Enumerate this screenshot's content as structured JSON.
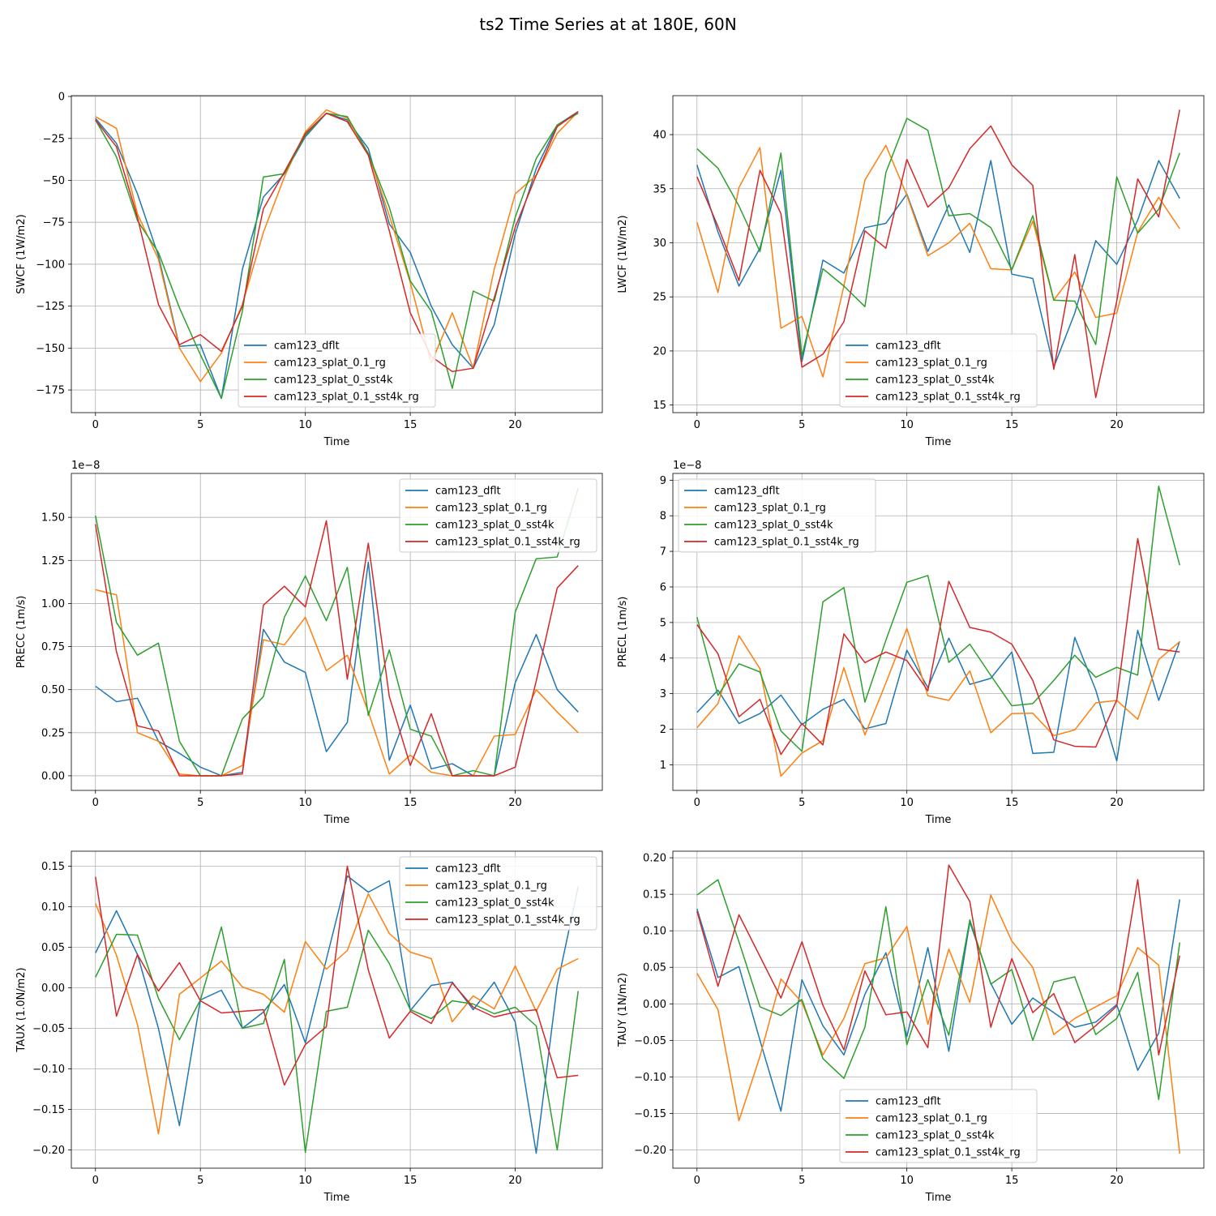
{
  "figure": {
    "suptitle": "ts2 Time Series at at 180E, 60N"
  },
  "colors": {
    "cam123_dflt": "#1f77b4",
    "cam123_splat_0.1_rg": "#ff7f0e",
    "cam123_splat_0_sst4k": "#2ca02c",
    "cam123_splat_0.1_sst4k_rg": "#d62728"
  },
  "chart_data": [
    {
      "type": "line",
      "id": "swcf",
      "xlabel": "Time",
      "ylabel": "SWCF (1W/m2)",
      "offset": "",
      "xlim": [
        -1.15,
        24.15
      ],
      "ylim": [
        -188.5,
        0.5
      ],
      "xticks": [
        0,
        5,
        10,
        15,
        20
      ],
      "yticks": [
        0,
        -25,
        -50,
        -75,
        -100,
        -125,
        -150,
        -175
      ],
      "ytick_labels": [
        "0",
        "−25",
        "−50",
        "−75",
        "−100",
        "−125",
        "−150",
        "−175"
      ],
      "legend_loc": "lower-center",
      "grid": true,
      "x": [
        0,
        1,
        2,
        3,
        4,
        5,
        6,
        7,
        8,
        9,
        10,
        11,
        12,
        13,
        14,
        15,
        16,
        17,
        18,
        19,
        20,
        21,
        22,
        23
      ],
      "series": [
        {
          "name": "cam123_dflt",
          "values": [
            -13,
            -28,
            -58,
            -95,
            -149,
            -148,
            -180,
            -103,
            -60,
            -46,
            -24,
            -10,
            -14,
            -31,
            -76,
            -93,
            -125,
            -148,
            -162,
            -136,
            -82,
            -43,
            -17,
            -9
          ]
        },
        {
          "name": "cam123_splat_0.1_rg",
          "values": [
            -12,
            -19,
            -70,
            -97,
            -150,
            -170,
            -153,
            -124,
            -81,
            -48,
            -21,
            -8,
            -13,
            -34,
            -71,
            -111,
            -159,
            -129,
            -162,
            -103,
            -58,
            -47,
            -22,
            -9
          ]
        },
        {
          "name": "cam123_splat_0_sst4k",
          "values": [
            -14,
            -36,
            -74,
            -93,
            -126,
            -154,
            -180,
            -128,
            -48,
            -46,
            -23,
            -10,
            -12,
            -34,
            -66,
            -110,
            -128,
            -174,
            -116,
            -122,
            -72,
            -37,
            -17,
            -10
          ]
        },
        {
          "name": "cam123_splat_0.1_sst4k_rg",
          "values": [
            -14,
            -30,
            -72,
            -124,
            -148,
            -142,
            -152,
            -125,
            -67,
            -45,
            -22,
            -10,
            -15,
            -35,
            -80,
            -129,
            -155,
            -164,
            -162,
            -120,
            -78,
            -47,
            -18,
            -9
          ]
        }
      ]
    },
    {
      "type": "line",
      "id": "lwcf",
      "xlabel": "Time",
      "ylabel": "LWCF (1W/m2)",
      "offset": "",
      "xlim": [
        -1.15,
        24.15
      ],
      "ylim": [
        14.3,
        43.6
      ],
      "xticks": [
        0,
        5,
        10,
        15,
        20
      ],
      "yticks": [
        15,
        20,
        25,
        30,
        35,
        40
      ],
      "ytick_labels": [
        "15",
        "20",
        "25",
        "30",
        "35",
        "40"
      ],
      "legend_loc": "lower-center",
      "grid": true,
      "x": [
        0,
        1,
        2,
        3,
        4,
        5,
        6,
        7,
        8,
        9,
        10,
        11,
        12,
        13,
        14,
        15,
        16,
        17,
        18,
        19,
        20,
        21,
        22,
        23
      ],
      "series": [
        {
          "name": "cam123_dflt",
          "values": [
            37.2,
            31.0,
            26.0,
            29.5,
            36.7,
            19.0,
            28.4,
            27.2,
            31.4,
            31.8,
            34.5,
            29.2,
            33.5,
            29.1,
            37.6,
            27.1,
            26.7,
            18.5,
            23.5,
            30.2,
            28.0,
            32.1,
            37.6,
            34.1
          ]
        },
        {
          "name": "cam123_splat_0.1_rg",
          "values": [
            31.9,
            25.4,
            35.1,
            38.8,
            22.1,
            23.2,
            17.6,
            26.0,
            35.8,
            39.0,
            34.4,
            28.8,
            30.0,
            31.8,
            27.6,
            27.5,
            32.0,
            24.7,
            27.3,
            23.1,
            23.5,
            31.0,
            34.2,
            31.3
          ]
        },
        {
          "name": "cam123_splat_0_sst4k",
          "values": [
            38.7,
            36.9,
            33.4,
            29.2,
            38.3,
            19.5,
            27.6,
            26.0,
            24.1,
            36.5,
            41.5,
            40.4,
            32.5,
            32.7,
            31.4,
            27.5,
            32.5,
            24.7,
            24.6,
            20.6,
            36.1,
            30.9,
            33.1,
            38.3
          ]
        },
        {
          "name": "cam123_splat_0.1_sst4k_rg",
          "values": [
            36.1,
            31.5,
            26.5,
            36.7,
            32.7,
            18.5,
            19.7,
            22.7,
            31.1,
            29.5,
            37.7,
            33.3,
            35.1,
            38.7,
            40.8,
            37.2,
            35.3,
            18.3,
            28.9,
            15.7,
            24.6,
            35.9,
            32.4,
            42.3
          ]
        }
      ]
    },
    {
      "type": "line",
      "id": "precc",
      "xlabel": "Time",
      "ylabel": "PRECC (1m/s)",
      "offset": "1e−8",
      "xlim": [
        -1.15,
        24.15
      ],
      "ylim": [
        -0.085,
        1.755
      ],
      "xticks": [
        0,
        5,
        10,
        15,
        20
      ],
      "yticks": [
        0.0,
        0.25,
        0.5,
        0.75,
        1.0,
        1.25,
        1.5
      ],
      "ytick_labels": [
        "0.00",
        "0.25",
        "0.50",
        "0.75",
        "1.00",
        "1.25",
        "1.50"
      ],
      "legend_loc": "top-right",
      "grid": true,
      "x": [
        0,
        1,
        2,
        3,
        4,
        5,
        6,
        7,
        8,
        9,
        10,
        11,
        12,
        13,
        14,
        15,
        16,
        17,
        18,
        19,
        20,
        21,
        22,
        23
      ],
      "series": [
        {
          "name": "cam123_dflt",
          "values": [
            0.52,
            0.43,
            0.45,
            0.2,
            0.13,
            0.05,
            0.0,
            0.02,
            0.85,
            0.66,
            0.6,
            0.14,
            0.31,
            1.24,
            0.09,
            0.41,
            0.04,
            0.07,
            0.0,
            0.0,
            0.54,
            0.82,
            0.5,
            0.37
          ]
        },
        {
          "name": "cam123_splat_0.1_rg",
          "values": [
            1.08,
            1.05,
            0.25,
            0.2,
            0.01,
            0.0,
            0.0,
            0.06,
            0.79,
            0.76,
            0.92,
            0.61,
            0.7,
            0.37,
            0.01,
            0.12,
            0.02,
            0.0,
            0.0,
            0.23,
            0.24,
            0.5,
            0.37,
            0.25
          ]
        },
        {
          "name": "cam123_splat_0_sst4k",
          "values": [
            1.51,
            0.89,
            0.7,
            0.77,
            0.2,
            0.0,
            0.0,
            0.33,
            0.46,
            0.92,
            1.16,
            0.9,
            1.21,
            0.35,
            0.73,
            0.27,
            0.23,
            0.0,
            0.03,
            0.0,
            0.95,
            1.26,
            1.27,
            1.67
          ]
        },
        {
          "name": "cam123_splat_0.1_sst4k_rg",
          "values": [
            1.46,
            0.72,
            0.29,
            0.26,
            0.0,
            0.0,
            0.0,
            0.01,
            0.99,
            1.1,
            0.98,
            1.48,
            0.56,
            1.35,
            0.46,
            0.06,
            0.36,
            0.0,
            0.0,
            0.0,
            0.05,
            0.55,
            1.09,
            1.22
          ]
        }
      ]
    },
    {
      "type": "line",
      "id": "precl",
      "xlabel": "Time",
      "ylabel": "PRECL (1m/s)",
      "offset": "1e−8",
      "xlim": [
        -1.15,
        24.15
      ],
      "ylim": [
        0.28,
        9.19
      ],
      "xticks": [
        0,
        5,
        10,
        15,
        20
      ],
      "yticks": [
        1,
        2,
        3,
        4,
        5,
        6,
        7,
        8,
        9
      ],
      "ytick_labels": [
        "1",
        "2",
        "3",
        "4",
        "5",
        "6",
        "7",
        "8",
        "9"
      ],
      "legend_loc": "top-left",
      "grid": true,
      "x": [
        0,
        1,
        2,
        3,
        4,
        5,
        6,
        7,
        8,
        9,
        10,
        11,
        12,
        13,
        14,
        15,
        16,
        17,
        18,
        19,
        20,
        21,
        22,
        23
      ],
      "series": [
        {
          "name": "cam123_dflt",
          "values": [
            2.47,
            3.1,
            2.16,
            2.44,
            2.96,
            2.13,
            2.56,
            2.84,
            2.01,
            2.16,
            4.22,
            3.17,
            4.56,
            3.26,
            3.43,
            4.17,
            1.32,
            1.35,
            4.58,
            3.1,
            1.11,
            4.78,
            2.81,
            4.47
          ]
        },
        {
          "name": "cam123_splat_0.1_rg",
          "values": [
            2.04,
            2.72,
            4.63,
            3.7,
            0.68,
            1.33,
            1.68,
            3.73,
            1.84,
            3.3,
            4.83,
            2.94,
            2.81,
            3.64,
            1.9,
            2.44,
            2.45,
            1.82,
            1.98,
            2.74,
            2.81,
            2.28,
            3.96,
            4.46
          ]
        },
        {
          "name": "cam123_splat_0_sst4k",
          "values": [
            5.15,
            2.95,
            3.84,
            3.61,
            1.95,
            1.38,
            5.58,
            5.98,
            2.76,
            4.5,
            6.13,
            6.32,
            3.88,
            4.39,
            3.51,
            2.66,
            2.72,
            3.37,
            4.08,
            3.46,
            3.74,
            3.52,
            8.83,
            6.61
          ]
        },
        {
          "name": "cam123_splat_0.1_sst4k_rg",
          "values": [
            4.94,
            4.12,
            2.35,
            2.84,
            1.29,
            2.16,
            1.56,
            4.68,
            3.87,
            4.17,
            3.93,
            3.08,
            6.16,
            4.86,
            4.73,
            4.39,
            3.37,
            1.7,
            1.52,
            1.5,
            2.82,
            7.36,
            4.25,
            4.17
          ]
        }
      ]
    },
    {
      "type": "line",
      "id": "taux",
      "xlabel": "Time",
      "ylabel": "TAUX (1.0N/m2)",
      "offset": "",
      "xlim": [
        -1.15,
        24.15
      ],
      "ylim": [
        -0.2225,
        0.1685
      ],
      "xticks": [
        0,
        5,
        10,
        15,
        20
      ],
      "yticks": [
        0.15,
        0.1,
        0.05,
        0.0,
        -0.05,
        -0.1,
        -0.15,
        -0.2
      ],
      "ytick_labels": [
        "0.15",
        "0.10",
        "0.05",
        "0.00",
        "−0.05",
        "−0.10",
        "−0.15",
        "−0.20"
      ],
      "legend_loc": "top-right",
      "grid": true,
      "x": [
        0,
        1,
        2,
        3,
        4,
        5,
        6,
        7,
        8,
        9,
        10,
        11,
        12,
        13,
        14,
        15,
        16,
        17,
        18,
        19,
        20,
        21,
        22,
        23
      ],
      "series": [
        {
          "name": "cam123_dflt",
          "values": [
            0.043,
            0.095,
            0.041,
            -0.05,
            -0.17,
            -0.015,
            -0.003,
            -0.05,
            -0.03,
            0.004,
            -0.068,
            0.035,
            0.138,
            0.118,
            0.132,
            -0.028,
            0.003,
            0.007,
            -0.027,
            0.007,
            -0.042,
            -0.204,
            0.003,
            0.125
          ]
        },
        {
          "name": "cam123_splat_0.1_rg",
          "values": [
            0.104,
            0.04,
            -0.045,
            -0.18,
            -0.008,
            0.012,
            0.033,
            0.001,
            -0.008,
            -0.03,
            0.057,
            0.023,
            0.046,
            0.116,
            0.067,
            0.044,
            0.036,
            -0.042,
            -0.01,
            -0.026,
            0.027,
            -0.029,
            0.023,
            0.036
          ]
        },
        {
          "name": "cam123_splat_0_sst4k",
          "values": [
            0.013,
            0.066,
            0.065,
            -0.013,
            -0.064,
            -0.015,
            0.075,
            -0.05,
            -0.044,
            0.035,
            -0.203,
            -0.029,
            -0.024,
            0.071,
            0.03,
            -0.027,
            -0.038,
            -0.016,
            -0.02,
            -0.032,
            -0.024,
            -0.047,
            -0.2,
            -0.004
          ]
        },
        {
          "name": "cam123_splat_0.1_sst4k_rg",
          "values": [
            0.137,
            -0.035,
            0.041,
            -0.004,
            0.031,
            -0.016,
            -0.031,
            -0.029,
            -0.027,
            -0.12,
            -0.07,
            -0.048,
            0.15,
            0.022,
            -0.062,
            -0.029,
            -0.044,
            0.006,
            -0.024,
            -0.036,
            -0.03,
            -0.027,
            -0.111,
            -0.108
          ]
        }
      ]
    },
    {
      "type": "line",
      "id": "tauy",
      "xlabel": "Time",
      "ylabel": "TAUY (1N/m2)",
      "offset": "",
      "xlim": [
        -1.15,
        24.15
      ],
      "ylim": [
        -0.225,
        0.209
      ],
      "xticks": [
        0,
        5,
        10,
        15,
        20
      ],
      "yticks": [
        0.2,
        0.15,
        0.1,
        0.05,
        0.0,
        -0.05,
        -0.1,
        -0.15,
        -0.2
      ],
      "ytick_labels": [
        "0.20",
        "0.15",
        "0.10",
        "0.05",
        "0.00",
        "−0.05",
        "−0.10",
        "−0.15",
        "−0.20"
      ],
      "legend_loc": "lower-center",
      "grid": true,
      "x": [
        0,
        1,
        2,
        3,
        4,
        5,
        6,
        7,
        8,
        9,
        10,
        11,
        12,
        13,
        14,
        15,
        16,
        17,
        18,
        19,
        20,
        21,
        22,
        23
      ],
      "series": [
        {
          "name": "cam123_dflt",
          "values": [
            0.13,
            0.036,
            0.051,
            -0.05,
            -0.147,
            0.033,
            -0.03,
            -0.07,
            0.013,
            0.07,
            -0.045,
            0.077,
            -0.065,
            0.112,
            0.028,
            -0.028,
            0.008,
            -0.012,
            -0.032,
            -0.025,
            -0.001,
            -0.091,
            -0.04,
            0.143
          ]
        },
        {
          "name": "cam123_splat_0.1_rg",
          "values": [
            0.042,
            -0.008,
            -0.16,
            -0.072,
            0.034,
            0.002,
            -0.07,
            -0.02,
            0.055,
            0.063,
            0.106,
            -0.028,
            0.075,
            0.002,
            0.149,
            0.086,
            0.05,
            -0.042,
            -0.02,
            -0.004,
            0.011,
            0.077,
            0.053,
            -0.205
          ]
        },
        {
          "name": "cam123_splat_0_sst4k",
          "values": [
            0.149,
            0.17,
            0.085,
            -0.004,
            -0.016,
            0.006,
            -0.075,
            -0.102,
            -0.032,
            0.133,
            -0.056,
            0.033,
            -0.043,
            0.115,
            0.027,
            0.047,
            -0.05,
            0.03,
            0.037,
            -0.042,
            -0.02,
            0.043,
            -0.131,
            0.084
          ]
        },
        {
          "name": "cam123_splat_0.1_sst4k_rg",
          "values": [
            0.127,
            0.024,
            0.122,
            0.065,
            0.008,
            0.085,
            -0.002,
            -0.063,
            0.045,
            -0.015,
            -0.011,
            -0.06,
            0.19,
            0.14,
            -0.032,
            0.062,
            -0.012,
            0.014,
            -0.053,
            -0.03,
            -0.003,
            0.17,
            -0.07,
            0.066
          ]
        }
      ]
    }
  ]
}
